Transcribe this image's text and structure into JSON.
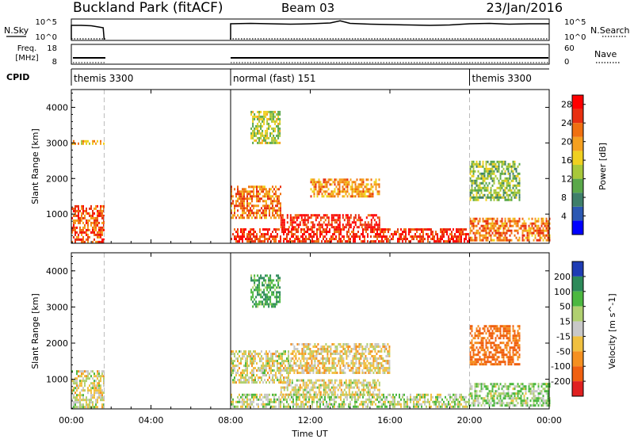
{
  "header": {
    "station": "Buckland Park (fitACF)",
    "beam": "Beam 03",
    "date": "23/Jan/2016"
  },
  "status_panels": {
    "nsky_label": "N.Sky",
    "nsky_ticks": [
      "10^5",
      "10^0"
    ],
    "nsearch_label": "N.Search",
    "nsearch_ticks": [
      "10^5",
      "10^0"
    ],
    "freq_label_line1": "Freq.",
    "freq_label_line2": "[MHz]",
    "freq_ticks": [
      "18",
      "8"
    ],
    "nave_label": "Nave",
    "nave_ticks": [
      "60",
      "0"
    ],
    "cpid_label": "CPID",
    "cpid_segments": [
      {
        "label": "themis 3300",
        "start_hour": 0.0,
        "end_hour": 1.65
      },
      {
        "label": "normal (fast) 151",
        "start_hour": 8.0,
        "end_hour": 20.0
      },
      {
        "label": "themis 3300",
        "start_hour": 20.0,
        "end_hour": 24.0
      }
    ],
    "nsky_trace": [
      [
        0.0,
        0.72
      ],
      [
        0.5,
        0.72
      ],
      [
        1.0,
        0.7
      ],
      [
        1.6,
        0.6
      ],
      [
        8.0,
        0.8
      ],
      [
        9,
        0.82
      ],
      [
        10,
        0.8
      ],
      [
        11,
        0.78
      ],
      [
        12,
        0.8
      ],
      [
        13,
        0.84
      ],
      [
        13.5,
        0.95
      ],
      [
        14,
        0.82
      ],
      [
        15,
        0.78
      ],
      [
        16,
        0.76
      ],
      [
        17,
        0.74
      ],
      [
        18,
        0.72
      ],
      [
        19,
        0.74
      ],
      [
        20,
        0.8
      ],
      [
        21,
        0.82
      ],
      [
        22,
        0.78
      ],
      [
        23,
        0.8
      ],
      [
        24,
        0.8
      ]
    ]
  },
  "chart_data": [
    {
      "type": "heatmap",
      "title": "",
      "xlabel": "Time UT",
      "ylabel": "Slant Range [km]",
      "xlim_hours": [
        0,
        24
      ],
      "ylim": [
        180,
        4500
      ],
      "x_ticks": [
        "00:00",
        "04:00",
        "08:00",
        "12:00",
        "16:00",
        "20:00",
        "00:00"
      ],
      "x_tick_hours": [
        0,
        4,
        8,
        12,
        16,
        20,
        24
      ],
      "y_ticks": [
        1000,
        2000,
        3000,
        4000
      ],
      "colorbar_label": "Power [dB]",
      "colorbar_ticks": [
        "4",
        "8",
        "12",
        "16",
        "20",
        "24",
        "28"
      ],
      "colorbar_tick_values": [
        4,
        8,
        12,
        16,
        20,
        24,
        28
      ],
      "colorbar_range": [
        0,
        30
      ],
      "colorbar_colors": [
        "#0000ff",
        "#2b58b3",
        "#3e7f6a",
        "#5aa84a",
        "#a8c83a",
        "#f0d020",
        "#f5a020",
        "#f07010",
        "#e83010",
        "#ff0000"
      ],
      "data_gaps_hours": [
        [
          1.65,
          8.0
        ]
      ],
      "echo_regions": [
        {
          "t0": 0.0,
          "t1": 1.65,
          "r0": 200,
          "r1": 1250,
          "level": 24
        },
        {
          "t0": 0.0,
          "t1": 1.65,
          "r0": 2950,
          "r1": 3080,
          "level": 18
        },
        {
          "t0": 8.0,
          "t1": 20.0,
          "r0": 250,
          "r1": 600,
          "level": 26
        },
        {
          "t0": 10.5,
          "t1": 15.5,
          "r0": 600,
          "r1": 1000,
          "level": 26
        },
        {
          "t0": 8.0,
          "t1": 10.5,
          "r0": 900,
          "r1": 1800,
          "level": 22
        },
        {
          "t0": 12.0,
          "t1": 15.5,
          "r0": 1500,
          "r1": 2000,
          "level": 20
        },
        {
          "t0": 9.0,
          "t1": 10.5,
          "r0": 3000,
          "r1": 3900,
          "level": 14
        },
        {
          "t0": 20.0,
          "t1": 22.5,
          "r0": 1400,
          "r1": 2500,
          "level": 12
        },
        {
          "t0": 20.0,
          "t1": 24.0,
          "r0": 250,
          "r1": 900,
          "level": 22
        }
      ]
    },
    {
      "type": "heatmap",
      "title": "",
      "xlabel": "Time UT",
      "ylabel": "Slant Range [km]",
      "xlim_hours": [
        0,
        24
      ],
      "ylim": [
        180,
        4500
      ],
      "x_ticks": [
        "00:00",
        "04:00",
        "08:00",
        "12:00",
        "16:00",
        "20:00",
        "00:00"
      ],
      "x_tick_hours": [
        0,
        4,
        8,
        12,
        16,
        20,
        24
      ],
      "y_ticks": [
        1000,
        2000,
        3000,
        4000
      ],
      "colorbar_label": "Velocity [m s^-1]",
      "colorbar_ticks": [
        "200",
        "100",
        "50",
        "15",
        "-15",
        "-50",
        "-100",
        "-200"
      ],
      "colorbar_tick_values": [
        200,
        100,
        50,
        15,
        -15,
        -50,
        -100,
        -200
      ],
      "colorbar_colors": [
        "#1e3cb4",
        "#2d8a5a",
        "#4cb840",
        "#b0d070",
        "#c8c8c8",
        "#f0c040",
        "#f59020",
        "#f06010",
        "#e02020"
      ],
      "data_gaps_hours": [
        [
          1.65,
          8.0
        ]
      ],
      "echo_regions": [
        {
          "t0": 0.0,
          "t1": 1.65,
          "r0": 200,
          "r1": 1250,
          "level": 0
        },
        {
          "t0": 8.0,
          "t1": 20.0,
          "r0": 250,
          "r1": 600,
          "level": 20
        },
        {
          "t0": 10.5,
          "t1": 15.5,
          "r0": 600,
          "r1": 1000,
          "level": 0
        },
        {
          "t0": 8.0,
          "t1": 11.0,
          "r0": 900,
          "r1": 1800,
          "level": 0
        },
        {
          "t0": 11.0,
          "t1": 16.0,
          "r0": 1200,
          "r1": 2000,
          "level": -20
        },
        {
          "t0": 9.0,
          "t1": 10.5,
          "r0": 3000,
          "r1": 3900,
          "level": 100
        },
        {
          "t0": 20.0,
          "t1": 22.5,
          "r0": 1400,
          "r1": 2500,
          "level": -120
        },
        {
          "t0": 20.0,
          "t1": 24.0,
          "r0": 250,
          "r1": 900,
          "level": 40
        }
      ]
    }
  ]
}
